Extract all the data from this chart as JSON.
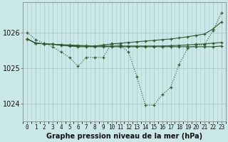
{
  "title": "Graphe pression niveau de la mer (hPa)",
  "bg_color": "#cbe8e8",
  "grid_color": "#b0cccc",
  "line_color": "#2d5a2d",
  "x_labels": [
    "0",
    "1",
    "2",
    "3",
    "4",
    "5",
    "6",
    "7",
    "8",
    "9",
    "10",
    "11",
    "12",
    "13",
    "14",
    "15",
    "16",
    "17",
    "18",
    "19",
    "20",
    "21",
    "22",
    "23"
  ],
  "hours": [
    0,
    1,
    2,
    3,
    4,
    5,
    6,
    7,
    8,
    9,
    10,
    11,
    12,
    13,
    14,
    15,
    16,
    17,
    18,
    19,
    20,
    21,
    22,
    23
  ],
  "line1_dotted": [
    1026.0,
    1025.8,
    1025.7,
    1025.6,
    1025.45,
    1025.3,
    1025.05,
    1025.3,
    1025.3,
    1025.3,
    1025.7,
    1025.65,
    1025.45,
    1024.75,
    1023.95,
    1023.95,
    1024.25,
    1024.45,
    1025.1,
    1025.55,
    1025.65,
    1025.65,
    1026.05,
    1026.55
  ],
  "line2_upper": [
    1025.82,
    1025.7,
    1025.68,
    1025.67,
    1025.66,
    1025.65,
    1025.64,
    1025.63,
    1025.62,
    1025.65,
    1025.68,
    1025.7,
    1025.72,
    1025.74,
    1025.76,
    1025.78,
    1025.8,
    1025.82,
    1025.85,
    1025.88,
    1025.92,
    1025.96,
    1026.1,
    1026.3
  ],
  "line3_mid": [
    1025.82,
    1025.7,
    1025.68,
    1025.67,
    1025.65,
    1025.63,
    1025.62,
    1025.62,
    1025.62,
    1025.62,
    1025.62,
    1025.62,
    1025.62,
    1025.62,
    1025.62,
    1025.62,
    1025.62,
    1025.63,
    1025.64,
    1025.65,
    1025.67,
    1025.68,
    1025.7,
    1025.72
  ],
  "line4_lower": [
    1025.82,
    1025.7,
    1025.68,
    1025.67,
    1025.64,
    1025.62,
    1025.6,
    1025.6,
    1025.6,
    1025.6,
    1025.6,
    1025.6,
    1025.6,
    1025.6,
    1025.6,
    1025.6,
    1025.6,
    1025.6,
    1025.6,
    1025.6,
    1025.6,
    1025.6,
    1025.6,
    1025.62
  ],
  "ylim": [
    1023.5,
    1026.85
  ],
  "yticks": [
    1024,
    1025,
    1026
  ],
  "ylabel_fontsize": 7,
  "xlabel_fontsize": 5.5,
  "title_fontsize": 7,
  "figsize": [
    3.2,
    2.0
  ],
  "dpi": 100
}
